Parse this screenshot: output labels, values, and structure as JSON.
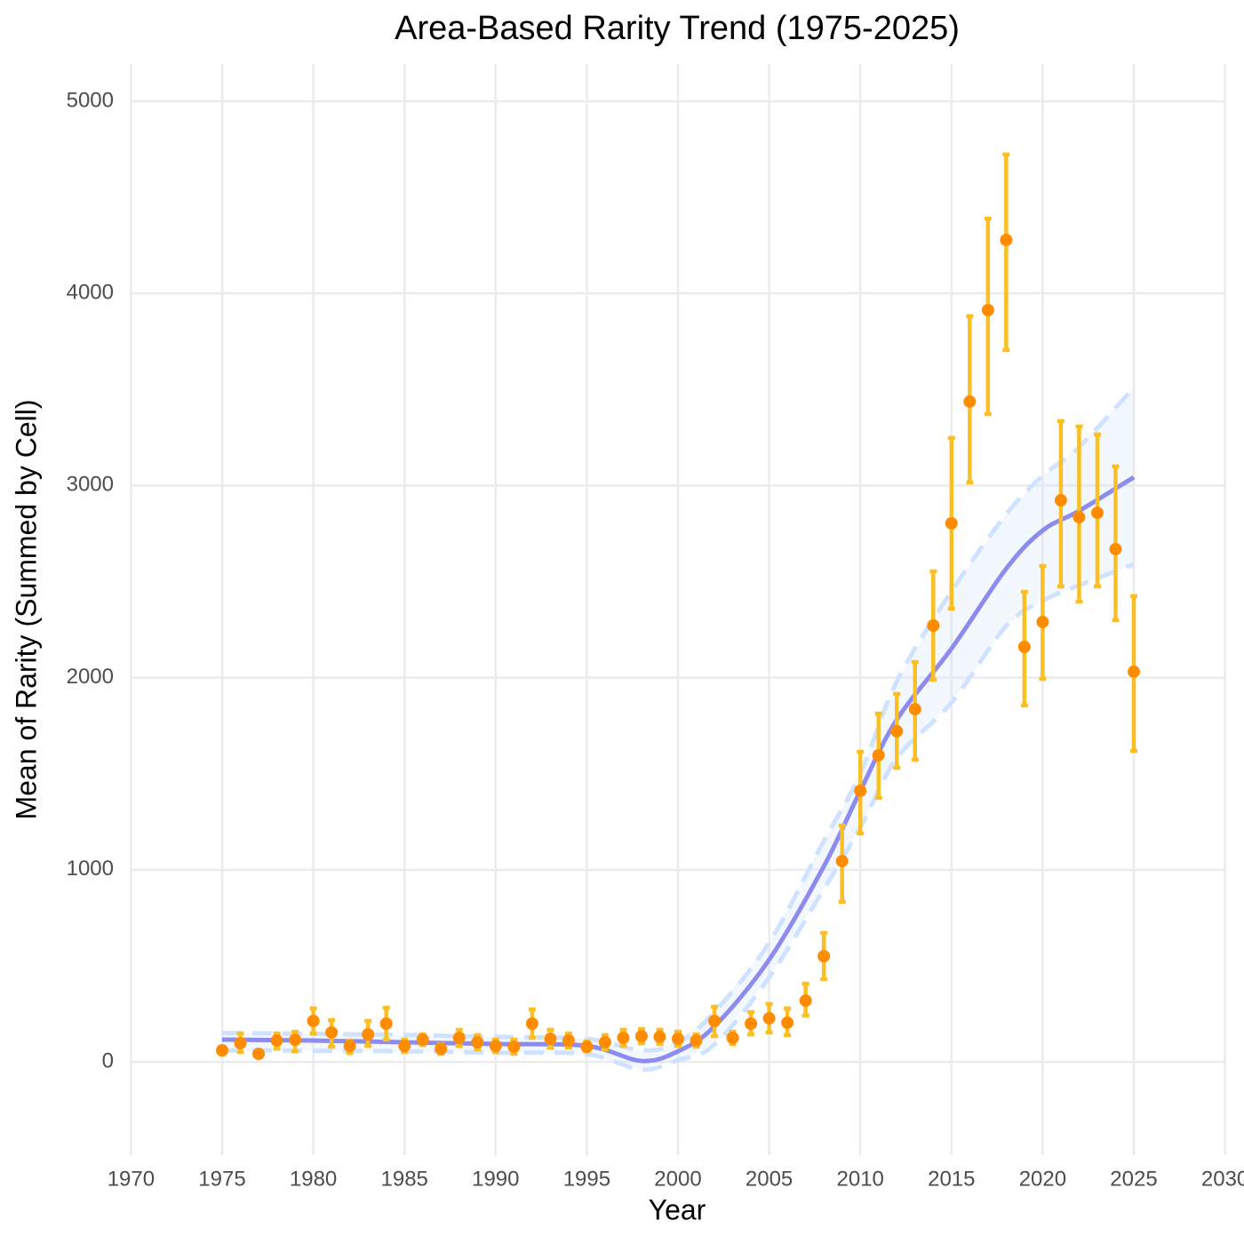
{
  "chart_data": {
    "type": "scatter",
    "title": "Area-Based Rarity Trend (1975-2025)",
    "x_label": "Year",
    "y_label": "Mean of Rarity (Summed by Cell)",
    "xlim": [
      1970,
      2030
    ],
    "xticks": [
      1970,
      1975,
      1980,
      1985,
      1990,
      1995,
      2000,
      2005,
      2010,
      2015,
      2020,
      2025,
      2030
    ],
    "ylim": [
      -485,
      5195
    ],
    "yticks": [
      0,
      1000,
      2000,
      3000,
      4000,
      5000
    ],
    "grid": true,
    "series": [
      {
        "color": "#ff8c00",
        "error_color": "#fbbf24",
        "x": [
          1975,
          1976,
          1977,
          1978,
          1979,
          1980,
          1981,
          1982,
          1983,
          1984,
          1985,
          1986,
          1987,
          1988,
          1989,
          1990,
          1991,
          1992,
          1993,
          1994,
          1995,
          1996,
          1997,
          1998,
          1999,
          2000,
          2001,
          2002,
          2003,
          2004,
          2005,
          2006,
          2007,
          2008,
          2009,
          2010,
          2011,
          2012,
          2013,
          2014,
          2015,
          2016,
          2017,
          2018,
          2019,
          2020,
          2021,
          2022,
          2023,
          2024,
          2025
        ],
        "values": [
          60,
          97,
          42,
          111,
          115,
          213,
          153,
          83,
          143,
          199,
          83,
          116,
          69,
          125,
          102,
          83,
          79,
          199,
          120,
          111,
          79,
          102,
          125,
          134,
          130,
          120,
          111,
          213,
          125,
          199,
          227,
          204,
          319,
          550,
          1045,
          1411,
          1596,
          1721,
          1836,
          2271,
          2803,
          3437,
          3913,
          4278,
          2160,
          2290,
          2923,
          2835,
          2858,
          2669,
          2031
        ],
        "lower": [
          40,
          51,
          30,
          69,
          55,
          148,
          79,
          46,
          83,
          116,
          51,
          88,
          42,
          83,
          65,
          51,
          42,
          125,
          74,
          74,
          55,
          65,
          83,
          97,
          93,
          83,
          79,
          134,
          93,
          143,
          153,
          139,
          241,
          430,
          833,
          1189,
          1374,
          1531,
          1573,
          1989,
          2359,
          3016,
          3372,
          3705,
          1855,
          1994,
          2475,
          2396,
          2475,
          2299,
          1619
        ],
        "upper": [
          80,
          148,
          55,
          148,
          157,
          278,
          217,
          111,
          213,
          282,
          116,
          143,
          93,
          167,
          139,
          116,
          116,
          273,
          167,
          148,
          106,
          139,
          167,
          171,
          167,
          157,
          143,
          287,
          157,
          259,
          301,
          278,
          407,
          671,
          1230,
          1614,
          1813,
          1915,
          2081,
          2553,
          3247,
          3881,
          4389,
          4723,
          2447,
          2581,
          3335,
          3307,
          3266,
          3099,
          2424
        ]
      }
    ],
    "fit": {
      "color": "#8c8cf0",
      "band_color": "#cfe2ff",
      "x": [
        1975,
        1980,
        1985,
        1990,
        1995,
        1998,
        2000,
        2002,
        2005,
        2008,
        2010,
        2012,
        2015,
        2018,
        2020,
        2022,
        2025
      ],
      "values": [
        116,
        111,
        102,
        93,
        83,
        5,
        55,
        185,
        532,
        1018,
        1411,
        1781,
        2151,
        2567,
        2766,
        2868,
        3043
      ],
      "lower": [
        60,
        58,
        55,
        48,
        40,
        -40,
        10,
        90,
        440,
        900,
        1220,
        1580,
        1870,
        2270,
        2400,
        2480,
        2590
      ],
      "upper": [
        150,
        146,
        140,
        130,
        120,
        60,
        100,
        260,
        620,
        1150,
        1500,
        1980,
        2450,
        2850,
        3050,
        3200,
        3510
      ]
    }
  }
}
